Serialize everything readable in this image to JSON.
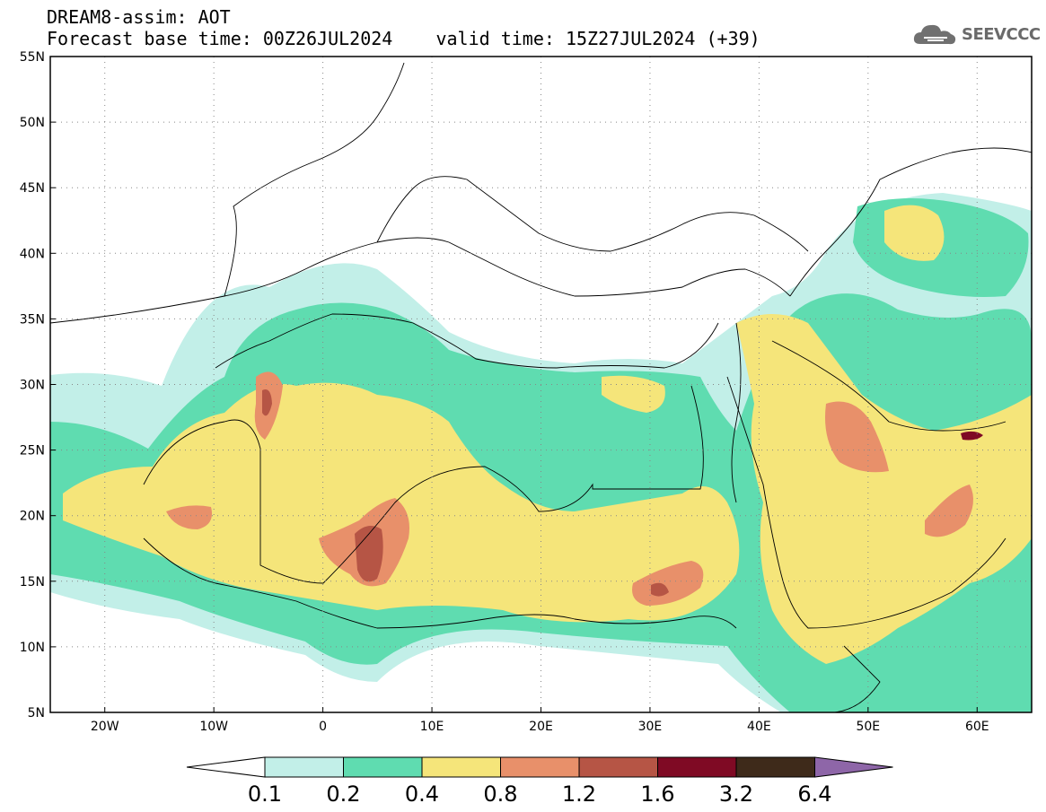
{
  "title": {
    "line1": "DREAM8-assim: AOT",
    "line2": "Forecast base time: 00Z26JUL2024    valid time: 15Z27JUL2024 (+39)"
  },
  "logo": {
    "text": "SEEVCCC",
    "icon": "cloud-icon"
  },
  "map": {
    "lat_labels": [
      "55N",
      "50N",
      "45N",
      "40N",
      "35N",
      "30N",
      "25N",
      "20N",
      "15N",
      "10N",
      "5N"
    ],
    "lon_labels": [
      "20W",
      "10W",
      "0",
      "10E",
      "20E",
      "30E",
      "40E",
      "50E",
      "60E"
    ],
    "ocean_color": "#ffffff",
    "border_color": "#000000"
  },
  "colorbar": {
    "levels": [
      "0.1",
      "0.2",
      "0.4",
      "0.8",
      "1.2",
      "1.6",
      "3.2",
      "6.4"
    ],
    "colors": [
      "#ffffff",
      "#c2efe8",
      "#5fdcb0",
      "#f5e57a",
      "#e8906a",
      "#b65545",
      "#7f0a24",
      "#3e2a1a",
      "#8e66a8"
    ]
  }
}
